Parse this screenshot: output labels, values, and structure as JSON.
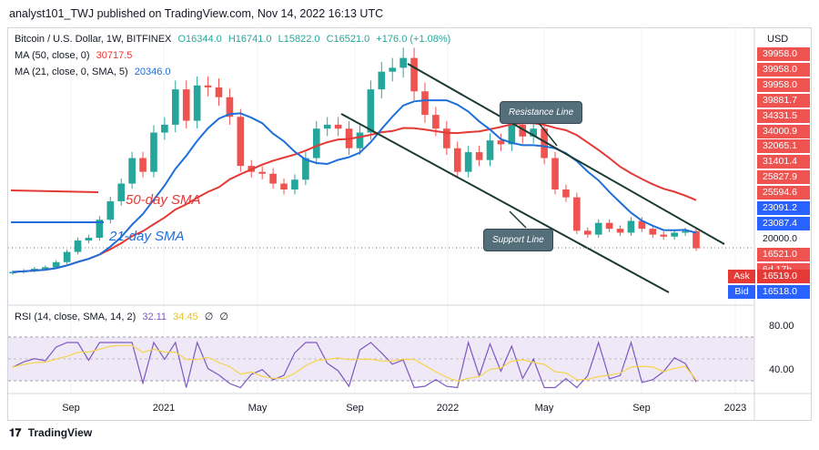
{
  "header": {
    "publisher": "analyst101_TWJ published on TradingView.com, Nov 14, 2022 16:13 UTC"
  },
  "footer": {
    "brand": "TradingView",
    "logo": "tradingview-logo"
  },
  "legend": {
    "symbol": "Bitcoin / U.S. Dollar, 1W, BITFINEX",
    "open": "O16344.0",
    "high": "H16741.0",
    "low": "L15822.0",
    "close": "C16521.0",
    "change": "+176.0 (+1.08%)",
    "ma50_label": "MA (50, close, 0)",
    "ma50_value": "30717.5",
    "ma21_label": "MA (21, close, 0, SMA, 5)",
    "ma21_value": "20346.0",
    "rsi_label": "RSI (14, close, SMA, 14, 2)",
    "rsi_value": "32.11",
    "rsi_sma_value": "34.45",
    "rsi_extra1": "∅",
    "rsi_extra2": "∅"
  },
  "annotations": {
    "resistance": "Resistance Line",
    "support": "Support Line",
    "sma50": "50-day SMA",
    "sma21": "21-day SMA"
  },
  "colors": {
    "up": "#26a69a",
    "down": "#ef5350",
    "ma50": "#e53935",
    "ma21": "#1e6fd9",
    "rsi": "#7e57c2",
    "rsi_sma": "#f5d44b",
    "channel": "#1b3a34",
    "price_label": "#e53935",
    "ask": "#e53935",
    "bid": "#2962ff"
  },
  "price_axis": {
    "currency": "USD",
    "labels": [
      {
        "text": "39958.0",
        "color": "#ef5350",
        "row": 0
      },
      {
        "text": "39958.0",
        "color": "#ef5350",
        "row": 1
      },
      {
        "text": "39958.0",
        "color": "#ef5350",
        "row": 2
      },
      {
        "text": "39881.7",
        "color": "#ef5350",
        "row": 3
      },
      {
        "text": "34331.5",
        "color": "#ef5350",
        "row": 4
      },
      {
        "text": "34000.9",
        "color": "#ef5350",
        "row": 5
      },
      {
        "text": "32065.1",
        "color": "#ef5350",
        "row": 6
      },
      {
        "text": "31401.4",
        "color": "#ef5350",
        "row": 7
      },
      {
        "text": "25827.9",
        "color": "#ef5350",
        "row": 8
      },
      {
        "text": "25594.6",
        "color": "#ef5350",
        "row": 9
      },
      {
        "text": "23091.2",
        "color": "#2962ff",
        "row": 10
      },
      {
        "text": "23087.4",
        "color": "#2962ff",
        "row": 11
      },
      {
        "text": "20000.0",
        "color": "#ffffff",
        "row": 12
      },
      {
        "text": "16521.0",
        "color": "#ef5350",
        "row": 13
      },
      {
        "text": "6d 17h",
        "color": "#ef5350",
        "row": 14
      }
    ],
    "ask_label": "Ask",
    "ask_value": "16519.0",
    "bid_label": "Bid",
    "bid_value": "16518.0",
    "rsi_ticks": [
      "80.00",
      "40.00"
    ]
  },
  "chart_data": {
    "type": "candlestick",
    "timeframe": "1W",
    "x_ticks": [
      "Sep",
      "2021",
      "May",
      "Sep",
      "2022",
      "May",
      "Sep",
      "2023"
    ],
    "price_series_weekly_close_approx": [
      10500,
      10800,
      11300,
      11700,
      13000,
      15600,
      18500,
      19200,
      23800,
      28500,
      33000,
      39500,
      36000,
      46000,
      48000,
      57000,
      49000,
      58000,
      57500,
      55000,
      50000,
      37500,
      36000,
      35500,
      33000,
      31500,
      34000,
      39500,
      47000,
      48000,
      47000,
      42000,
      46000,
      57000,
      61500,
      62500,
      65000,
      56500,
      50500,
      47000,
      42000,
      36000,
      41000,
      39000,
      44000,
      43000,
      48000,
      45000,
      47000,
      39500,
      31500,
      29500,
      21000,
      20000,
      23000,
      21500,
      20500,
      23500,
      21500,
      20000,
      19500,
      20500,
      20900,
      16521
    ],
    "ma50_end": 30717.5,
    "ma21_end": 20346.0,
    "rsi_end": 32.11,
    "rsi_sma_end": 34.45,
    "rsi_levels": [
      70,
      50,
      30
    ]
  }
}
